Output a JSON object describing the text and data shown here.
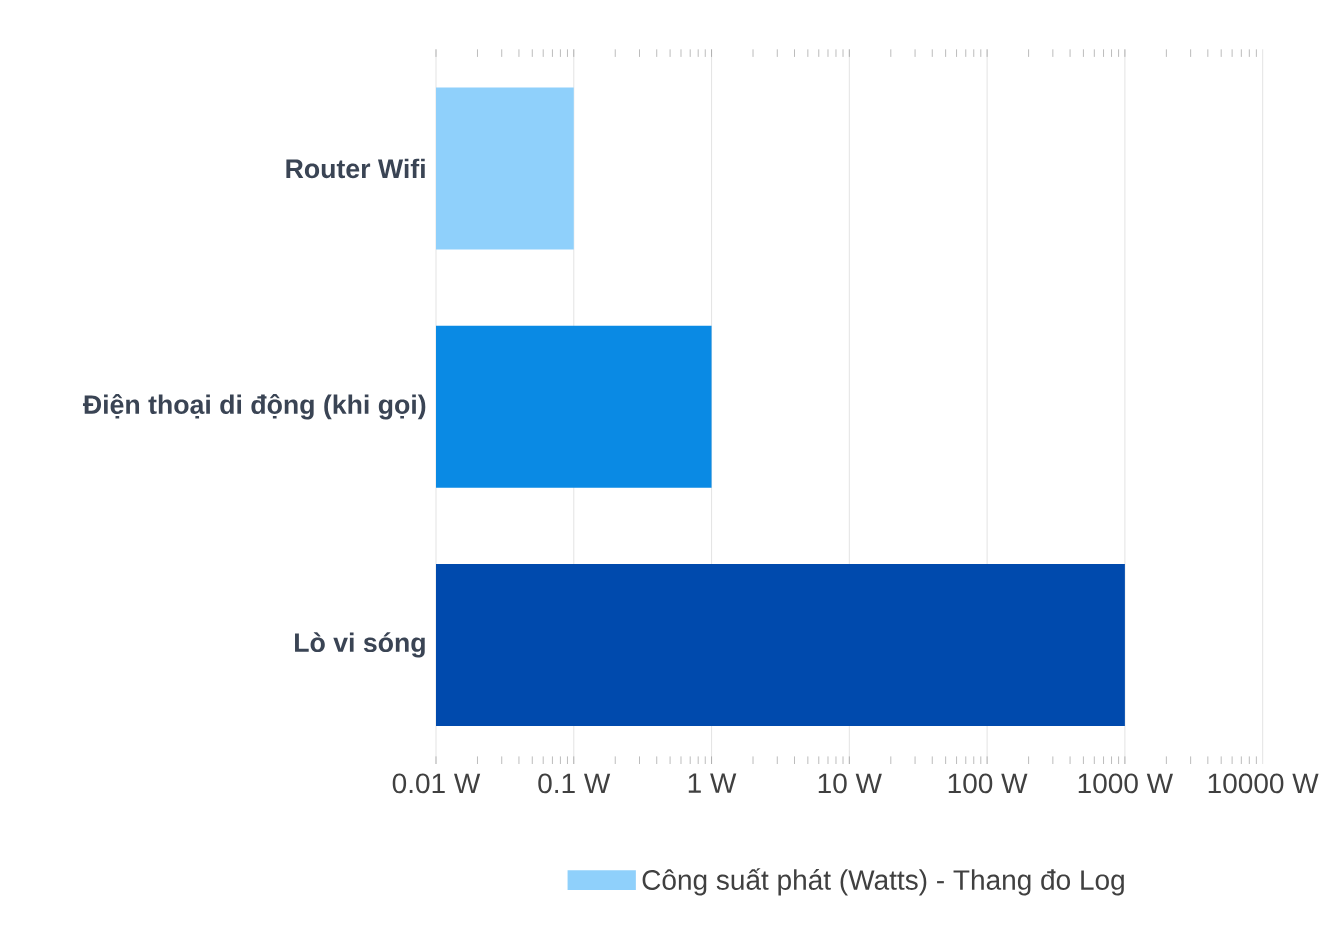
{
  "chart_data": {
    "type": "bar",
    "orientation": "horizontal",
    "log": "x",
    "categories": [
      "Router Wifi",
      "Điện thoại di động (khi gọi)",
      "Lò vi sóng"
    ],
    "series": [
      {
        "name": "Công suất phát (Watts) - Thang đo Log",
        "color": "#8fd0fb",
        "colors": [
          "#8fd0fb",
          "#0a8ae4",
          "#004aad"
        ],
        "values": [
          0.1,
          1,
          1000
        ]
      }
    ],
    "xlim": [
      0.01,
      10000
    ],
    "xticks": [
      {
        "value": 0.01,
        "label": "0.01 W"
      },
      {
        "value": 0.1,
        "label": "0.1 W"
      },
      {
        "value": 1,
        "label": "1 W"
      },
      {
        "value": 10,
        "label": "10 W"
      },
      {
        "value": 100,
        "label": "100 W"
      },
      {
        "value": 1000,
        "label": "1000 W"
      },
      {
        "value": 10000,
        "label": "10000 W"
      }
    ],
    "grid": "x",
    "legend": "bottom"
  }
}
